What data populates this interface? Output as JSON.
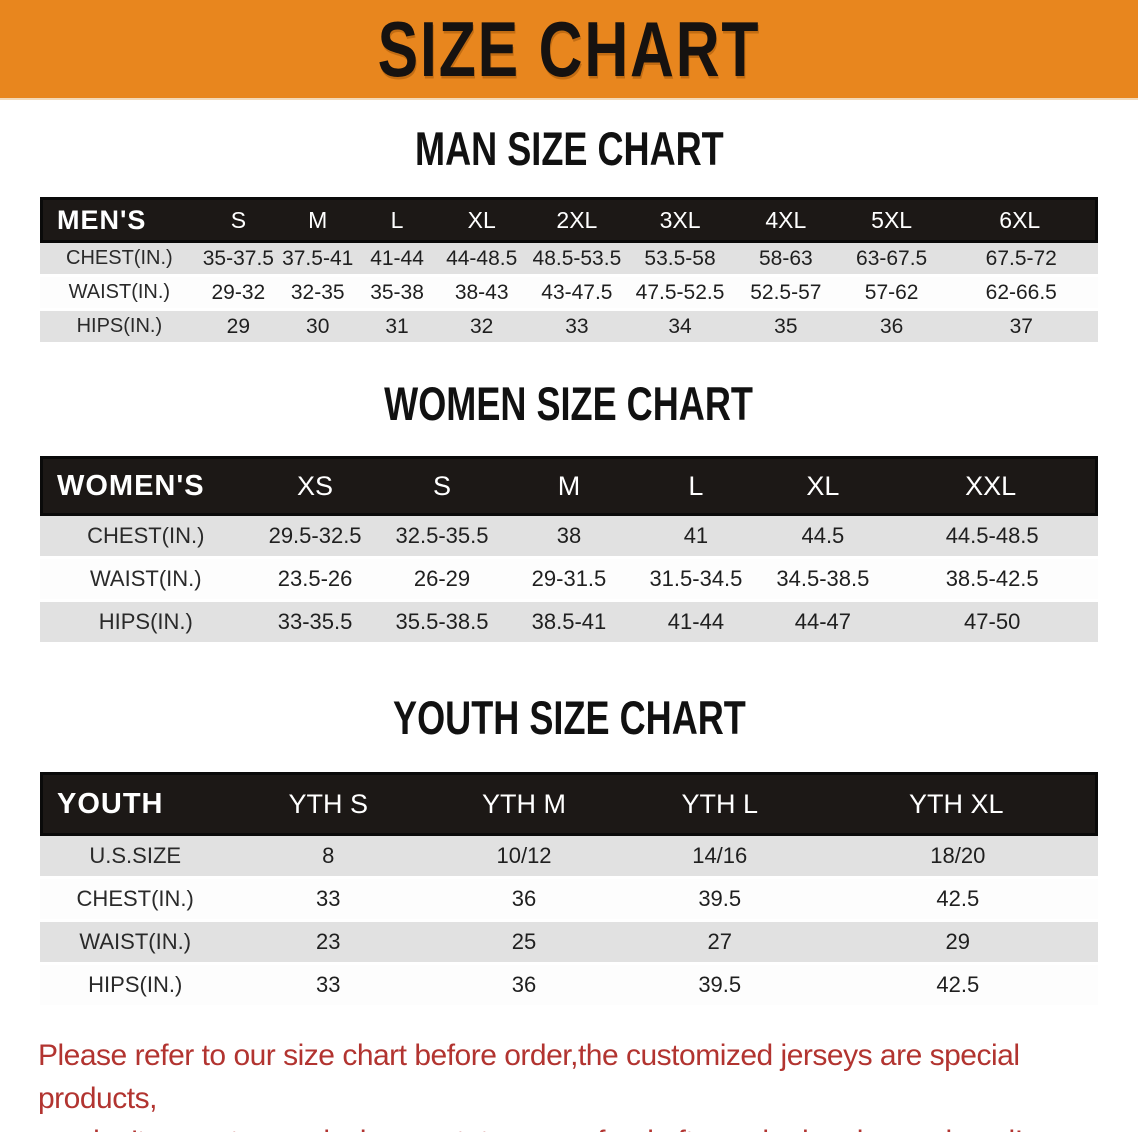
{
  "banner": {
    "title": "SIZE CHART",
    "bg_color": "#E8861E",
    "text_color": "#161210"
  },
  "sections": [
    {
      "heading": "MAN SIZE CHART",
      "table": {
        "header_label": "MEN'S",
        "columns": [
          "S",
          "M",
          "L",
          "XL",
          "2XL",
          "3XL",
          "4XL",
          "5XL",
          "6XL"
        ],
        "rows": [
          {
            "label": "CHEST(IN.)",
            "values": [
              "35-37.5",
              "37.5-41",
              "41-44",
              "44-48.5",
              "48.5-53.5",
              "53.5-58",
              "58-63",
              "63-67.5",
              "67.5-72"
            ]
          },
          {
            "label": "WAIST(IN.)",
            "values": [
              "29-32",
              "32-35",
              "35-38",
              "38-43",
              "43-47.5",
              "47.5-52.5",
              "52.5-57",
              "57-62",
              "62-66.5"
            ]
          },
          {
            "label": "HIPS(IN.)",
            "values": [
              "29",
              "30",
              "31",
              "32",
              "33",
              "34",
              "35",
              "36",
              "37"
            ]
          }
        ]
      }
    },
    {
      "heading": "WOMEN SIZE CHART",
      "table": {
        "header_label": "WOMEN'S",
        "columns": [
          "XS",
          "S",
          "M",
          "L",
          "XL",
          "XXL"
        ],
        "rows": [
          {
            "label": "CHEST(IN.)",
            "values": [
              "29.5-32.5",
              "32.5-35.5",
              "38",
              "41",
              "44.5",
              "44.5-48.5"
            ]
          },
          {
            "label": "WAIST(IN.)",
            "values": [
              "23.5-26",
              "26-29",
              "29-31.5",
              "31.5-34.5",
              "34.5-38.5",
              "38.5-42.5"
            ]
          },
          {
            "label": "HIPS(IN.)",
            "values": [
              "33-35.5",
              "35.5-38.5",
              "38.5-41",
              "41-44",
              "44-47",
              "47-50"
            ]
          }
        ]
      }
    },
    {
      "heading": "YOUTH SIZE CHART",
      "table": {
        "header_label": "YOUTH",
        "columns": [
          "YTH S",
          "YTH M",
          "YTH L",
          "YTH XL"
        ],
        "rows": [
          {
            "label": "U.S.SIZE",
            "values": [
              "8",
              "10/12",
              "14/16",
              "18/20"
            ]
          },
          {
            "label": "CHEST(IN.)",
            "values": [
              "33",
              "36",
              "39.5",
              "42.5"
            ]
          },
          {
            "label": "WAIST(IN.)",
            "values": [
              "23",
              "25",
              "27",
              "29"
            ]
          },
          {
            "label": "HIPS(IN.)",
            "values": [
              "33",
              "36",
              "39.5",
              "42.5"
            ]
          }
        ]
      }
    }
  ],
  "disclaimer": {
    "line1": "Please refer to our size chart before order,the customized jerseys are special products,",
    "line2": "we don't accept cancel, change, teturn or refund after order has been placed!",
    "color": "#B23430"
  },
  "colors": {
    "banner_orange": "#E8861E",
    "header_bar": "#1C1816",
    "row_gray": "#E1E1E1",
    "row_white": "#FDFDFD",
    "disclaimer_red": "#B23430"
  }
}
